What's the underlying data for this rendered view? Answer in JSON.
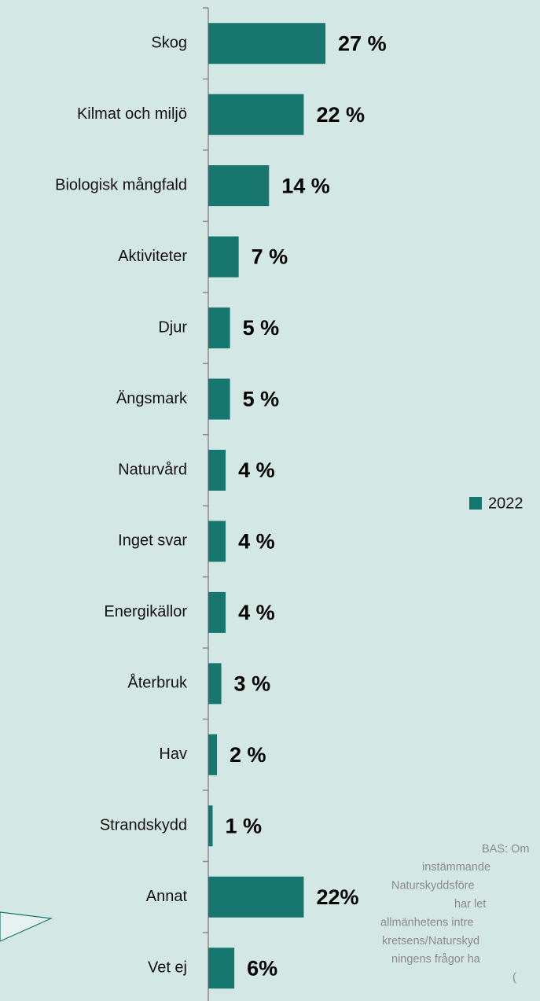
{
  "chart_data": {
    "type": "bar",
    "orientation": "horizontal",
    "categories": [
      "Skog",
      "Kilmat och miljö",
      "Biologisk mångfald",
      "Aktiviteter",
      "Djur",
      "Ängsmark",
      "Naturvård",
      "Inget svar",
      "Energikällor",
      "Återbruk",
      "Hav",
      "Strandskydd",
      "Annat",
      "Vet ej"
    ],
    "series": [
      {
        "name": "2022",
        "color": "#17776f",
        "values": [
          27,
          22,
          14,
          7,
          5,
          5,
          4,
          4,
          4,
          3,
          2,
          1,
          22,
          6
        ],
        "value_labels": [
          "27 %",
          "22 %",
          "14 %",
          "7 %",
          "5 %",
          "5 %",
          "4 %",
          "4 %",
          "4 %",
          "3 %",
          "2 %",
          "1 %",
          "22%",
          "6%"
        ]
      }
    ],
    "xlim": [
      0,
      100
    ],
    "legend": "right",
    "note": [
      "BAS: Om",
      "instämmande",
      "Naturskyddsföre",
      "har let",
      "allmänhetens intre",
      "kretsens/Naturskyd",
      "ningens frågor ha",
      "("
    ]
  }
}
